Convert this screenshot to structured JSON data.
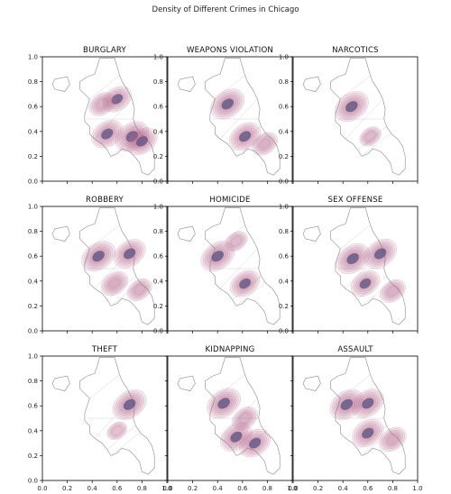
{
  "figure": {
    "suptitle": "Density of Different Crimes in Chicago",
    "colors": {
      "kde": "#b4668c",
      "kde_dark": "#5a4d7c",
      "map_lines": "#8a8a8a",
      "axes": "#000000"
    }
  },
  "chart_data": [
    {
      "type": "heatmap",
      "title": "BURGLARY",
      "xlim": [
        0,
        1
      ],
      "ylim": [
        0,
        1
      ],
      "xticks": [],
      "yticks": [
        "0.0",
        "0.2",
        "0.4",
        "0.6",
        "0.8",
        "1.0"
      ],
      "density_peaks": [
        {
          "x": 0.6,
          "y": 0.66,
          "weight": 0.7
        },
        {
          "x": 0.48,
          "y": 0.62,
          "weight": 0.55
        },
        {
          "x": 0.52,
          "y": 0.38,
          "weight": 0.85
        },
        {
          "x": 0.72,
          "y": 0.36,
          "weight": 1.0
        },
        {
          "x": 0.8,
          "y": 0.32,
          "weight": 0.8
        }
      ]
    },
    {
      "type": "heatmap",
      "title": "WEAPONS VIOLATION",
      "xlim": [
        0,
        1
      ],
      "ylim": [
        0,
        1
      ],
      "xticks": [],
      "yticks": [
        "0.0",
        "0.2",
        "0.4",
        "0.6",
        "0.8",
        "1.0"
      ],
      "density_peaks": [
        {
          "x": 0.48,
          "y": 0.62,
          "weight": 1.0
        },
        {
          "x": 0.62,
          "y": 0.36,
          "weight": 0.85
        },
        {
          "x": 0.78,
          "y": 0.3,
          "weight": 0.5
        }
      ]
    },
    {
      "type": "heatmap",
      "title": "NARCOTICS",
      "xlim": [
        0,
        1
      ],
      "ylim": [
        0,
        1
      ],
      "xticks": [],
      "yticks": [
        "0.0",
        "0.2",
        "0.4",
        "0.6",
        "0.8",
        "1.0"
      ],
      "density_peaks": [
        {
          "x": 0.47,
          "y": 0.6,
          "weight": 1.0
        },
        {
          "x": 0.62,
          "y": 0.36,
          "weight": 0.25
        }
      ]
    },
    {
      "type": "heatmap",
      "title": "ROBBERY",
      "xlim": [
        0,
        1
      ],
      "ylim": [
        0,
        1
      ],
      "xticks": [],
      "yticks": [
        "0.0",
        "0.2",
        "0.4",
        "0.6",
        "0.8",
        "1.0"
      ],
      "density_peaks": [
        {
          "x": 0.45,
          "y": 0.6,
          "weight": 1.0
        },
        {
          "x": 0.7,
          "y": 0.62,
          "weight": 0.9
        },
        {
          "x": 0.58,
          "y": 0.38,
          "weight": 0.6
        },
        {
          "x": 0.78,
          "y": 0.33,
          "weight": 0.45
        }
      ]
    },
    {
      "type": "heatmap",
      "title": "HOMICIDE",
      "xlim": [
        0,
        1
      ],
      "ylim": [
        0,
        1
      ],
      "xticks": [],
      "yticks": [
        "0.0",
        "0.2",
        "0.4",
        "0.6",
        "0.8",
        "1.0"
      ],
      "density_peaks": [
        {
          "x": 0.4,
          "y": 0.6,
          "weight": 1.0
        },
        {
          "x": 0.62,
          "y": 0.38,
          "weight": 0.75
        },
        {
          "x": 0.55,
          "y": 0.72,
          "weight": 0.3
        }
      ]
    },
    {
      "type": "heatmap",
      "title": "SEX OFFENSE",
      "xlim": [
        0,
        1
      ],
      "ylim": [
        0,
        1
      ],
      "xticks": [],
      "yticks": [
        "0.0",
        "0.2",
        "0.4",
        "0.6",
        "0.8",
        "1.0"
      ],
      "density_peaks": [
        {
          "x": 0.48,
          "y": 0.58,
          "weight": 1.0
        },
        {
          "x": 0.7,
          "y": 0.62,
          "weight": 0.95
        },
        {
          "x": 0.58,
          "y": 0.38,
          "weight": 0.7
        },
        {
          "x": 0.8,
          "y": 0.32,
          "weight": 0.5
        }
      ]
    },
    {
      "type": "heatmap",
      "title": "THEFT",
      "xlim": [
        0,
        1
      ],
      "ylim": [
        0,
        1
      ],
      "xticks": [
        "0.0",
        "0.2",
        "0.4",
        "0.6",
        "0.8",
        "1.0"
      ],
      "yticks": [
        "0.0",
        "0.2",
        "0.4",
        "0.6",
        "0.8",
        "1.0"
      ],
      "density_peaks": [
        {
          "x": 0.7,
          "y": 0.61,
          "weight": 1.0
        },
        {
          "x": 0.6,
          "y": 0.4,
          "weight": 0.15
        }
      ]
    },
    {
      "type": "heatmap",
      "title": "KIDNAPPING",
      "xlim": [
        0,
        1
      ],
      "ylim": [
        0,
        1
      ],
      "xticks": [
        "0.0",
        "0.2",
        "0.4",
        "0.6",
        "0.8",
        "1.0"
      ],
      "yticks": [],
      "density_peaks": [
        {
          "x": 0.45,
          "y": 0.62,
          "weight": 1.0
        },
        {
          "x": 0.55,
          "y": 0.35,
          "weight": 0.9
        },
        {
          "x": 0.7,
          "y": 0.3,
          "weight": 0.85
        },
        {
          "x": 0.62,
          "y": 0.5,
          "weight": 0.5
        }
      ]
    },
    {
      "type": "heatmap",
      "title": "ASSAULT",
      "xlim": [
        0,
        1
      ],
      "ylim": [
        0,
        1
      ],
      "xticks": [
        "0.0",
        "0.2",
        "0.4",
        "0.6",
        "0.8",
        "1.0"
      ],
      "yticks": [],
      "density_peaks": [
        {
          "x": 0.43,
          "y": 0.61,
          "weight": 1.0
        },
        {
          "x": 0.6,
          "y": 0.62,
          "weight": 0.9
        },
        {
          "x": 0.6,
          "y": 0.38,
          "weight": 0.85
        },
        {
          "x": 0.8,
          "y": 0.33,
          "weight": 0.6
        }
      ]
    }
  ]
}
